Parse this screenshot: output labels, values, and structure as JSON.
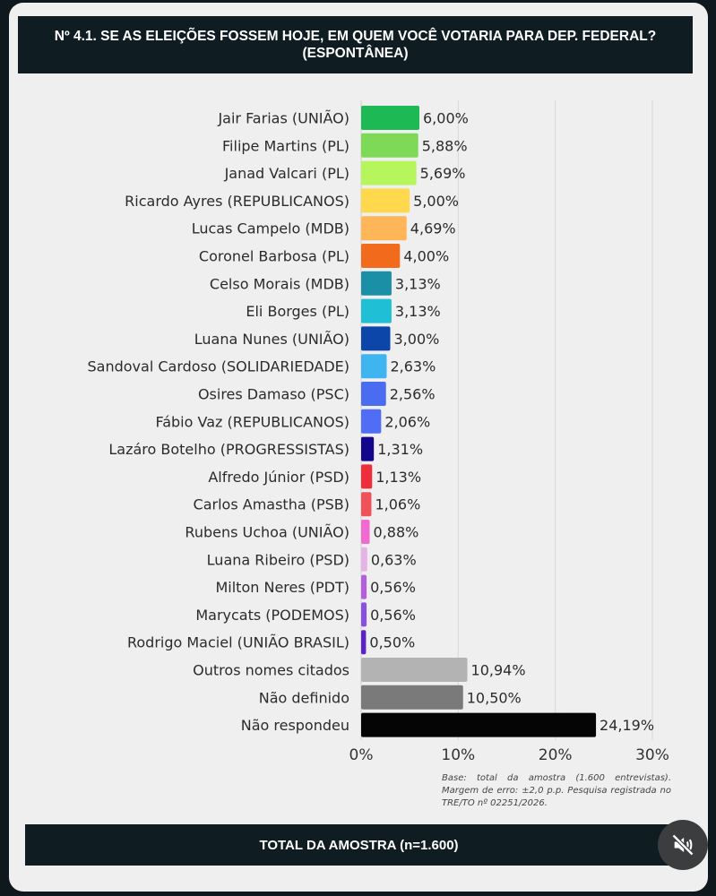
{
  "chart_data": {
    "type": "bar",
    "orientation": "horizontal",
    "title": "Nº 4.1. SE AS ELEIÇÕES FOSSEM HOJE, EM QUEM VOCÊ VOTARIA PARA DEP. FEDERAL? (ESPONTÂNEA)",
    "categories": [
      "Jair Farias (UNIÃO)",
      "Filipe Martins (PL)",
      "Janad Valcari (PL)",
      "Ricardo Ayres (REPUBLICANOS)",
      "Lucas Campelo (MDB)",
      "Coronel Barbosa (PL)",
      "Celso Morais (MDB)",
      "Eli Borges (PL)",
      "Luana Nunes (UNIÃO)",
      "Sandoval Cardoso (SOLIDARIEDADE)",
      "Osires Damaso (PSC)",
      "Fábio Vaz (REPUBLICANOS)",
      "Lazáro Botelho (PROGRESSISTAS)",
      "Alfredo Júnior (PSD)",
      "Carlos Amastha (PSB)",
      "Rubens Uchoa (UNIÃO)",
      "Luana Ribeiro (PSD)",
      "Milton Neres (PDT)",
      "Marycats (PODEMOS)",
      "Rodrigo Maciel (UNIÃO BRASIL)",
      "Outros nomes citados",
      "Não definido",
      "Não respondeu"
    ],
    "values": [
      6.0,
      5.88,
      5.69,
      5.0,
      4.69,
      4.0,
      3.13,
      3.13,
      3.0,
      2.63,
      2.56,
      2.06,
      1.31,
      1.13,
      1.06,
      0.88,
      0.63,
      0.56,
      0.56,
      0.5,
      10.94,
      10.5,
      24.19
    ],
    "value_labels": [
      "6,00%",
      "5,88%",
      "5,69%",
      "5,00%",
      "4,69%",
      "4,00%",
      "3,13%",
      "3,13%",
      "3,00%",
      "2,63%",
      "2,56%",
      "2,06%",
      "1,31%",
      "1,13%",
      "1,06%",
      "0,88%",
      "0,63%",
      "0,56%",
      "0,56%",
      "0,50%",
      "10,94%",
      "10,50%",
      "24,19%"
    ],
    "colors": [
      "#1db954",
      "#7ed957",
      "#b6f55c",
      "#ffd84d",
      "#ffb659",
      "#f26b1d",
      "#1a8fa6",
      "#1fc0d6",
      "#0b46a8",
      "#3eb4f0",
      "#4a6cf0",
      "#4f6df5",
      "#14068c",
      "#f02d3a",
      "#f0525a",
      "#f06ad0",
      "#e6b3e6",
      "#b35fe0",
      "#8a4fe0",
      "#5a23c8",
      "#b3b3b3",
      "#7a7a7a",
      "#050505"
    ],
    "xlim": [
      0,
      30
    ],
    "xticks": [
      "0%",
      "10%",
      "20%",
      "30%"
    ],
    "grid": true,
    "legend": "none"
  },
  "note": "Base: total da amostra (1.600 entrevistas). Margem de erro: ±2,0 p.p. Pesquisa registrada no TRE/TO nº 02251/2026.",
  "footer": "TOTAL DA AMOSTRA (n=1.600)",
  "mute_icon": "muted-speaker-icon"
}
